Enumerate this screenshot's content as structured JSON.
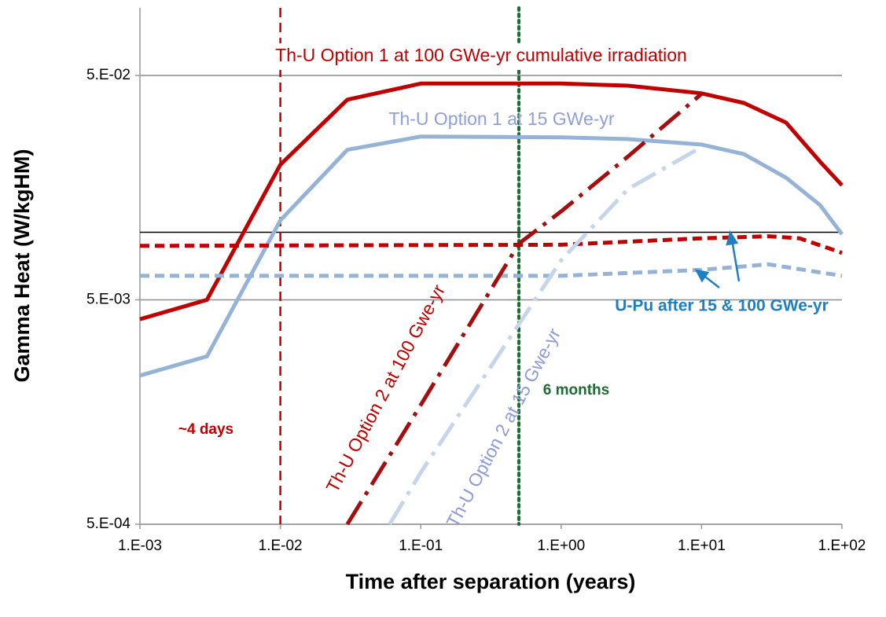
{
  "chart_data": {
    "type": "line",
    "x_label": "Time after separation (years)",
    "y_label": "Gamma Heat (W/kgHM)",
    "xscale": "log",
    "yscale": "log",
    "xlim": [
      0.001,
      100
    ],
    "ylim": [
      0.0005,
      0.1
    ],
    "xticks": [
      {
        "value": 0.001,
        "label": "1.E-03"
      },
      {
        "value": 0.01,
        "label": "1.E-02"
      },
      {
        "value": 0.1,
        "label": "1.E-01"
      },
      {
        "value": 1,
        "label": "1.E+00"
      },
      {
        "value": 10,
        "label": "1.E+01"
      },
      {
        "value": 100,
        "label": "1.E+02"
      }
    ],
    "yticks": [
      {
        "value": 0.0005,
        "label": "5.E-04"
      },
      {
        "value": 0.005,
        "label": "5.E-03"
      },
      {
        "value": 0.05,
        "label": "5.E-02"
      }
    ],
    "grid": true,
    "hline": 0.01,
    "vlines": [
      {
        "x": 0.01,
        "color": "#c00000",
        "dash": "dashed"
      },
      {
        "x": 0.5,
        "color": "#1e6b34",
        "dash": "dotted"
      }
    ],
    "series": [
      {
        "color": "#c00000",
        "dash": "solid",
        "x": [
          0.001,
          0.003,
          0.01,
          0.03,
          0.1,
          1,
          3,
          10,
          20,
          40,
          70,
          100
        ],
        "values": [
          0.0041,
          0.005,
          0.02,
          0.039,
          0.046,
          0.046,
          0.045,
          0.0416,
          0.0377,
          0.0308,
          0.0206,
          0.0162
        ]
      },
      {
        "color": "#95b3d7",
        "dash": "solid",
        "x": [
          0.001,
          0.003,
          0.01,
          0.03,
          0.1,
          1,
          3,
          10,
          20,
          40,
          70,
          100
        ],
        "values": [
          0.0023,
          0.0028,
          0.0113,
          0.0233,
          0.0267,
          0.0265,
          0.026,
          0.0246,
          0.0223,
          0.0175,
          0.0132,
          0.0098
        ]
      },
      {
        "color": "#c00000",
        "dash": "dashed",
        "x": [
          0.001,
          1,
          10,
          30,
          50,
          100
        ],
        "values": [
          0.0087,
          0.0088,
          0.0094,
          0.0096,
          0.0094,
          0.0081
        ]
      },
      {
        "color": "#95b3d7",
        "dash": "dashed",
        "x": [
          0.001,
          1,
          10,
          30,
          100
        ],
        "values": [
          0.0064,
          0.0064,
          0.0068,
          0.0072,
          0.0064
        ]
      },
      {
        "color": "#a50e0e",
        "dash": "dashdot",
        "x": [
          0.03,
          0.1,
          0.5,
          1,
          3,
          10
        ],
        "values": [
          0.0005,
          0.0017,
          0.0089,
          0.0124,
          0.0218,
          0.0414
        ]
      },
      {
        "color": "#c5d5ea",
        "dash": "dashdot",
        "x": [
          0.06,
          0.1,
          1,
          3,
          10
        ],
        "values": [
          0.0005,
          0.00085,
          0.0075,
          0.0156,
          0.024
        ]
      }
    ],
    "annotations": [
      {
        "text": "Th-U Option 1 at 100 GWe-yr cumulative irradiation",
        "color": "#c00000"
      },
      {
        "text": "Th-U Option 1 at 15 GWe-yr",
        "color": "#8e9fe0"
      },
      {
        "text": "Th-U Option 2 at 100 Gwe-yr",
        "color": "#c00000"
      },
      {
        "text": "Th-U Option 2 at 15 Gwe-yr",
        "color": "#8e9ad9"
      },
      {
        "text": "U-Pu after 15 & 100 GWe-yr",
        "color": "#1f7fc2"
      },
      {
        "text": "6 months",
        "color": "#1e6b34"
      },
      {
        "text": "~4 days",
        "color": "#c00000"
      }
    ]
  }
}
